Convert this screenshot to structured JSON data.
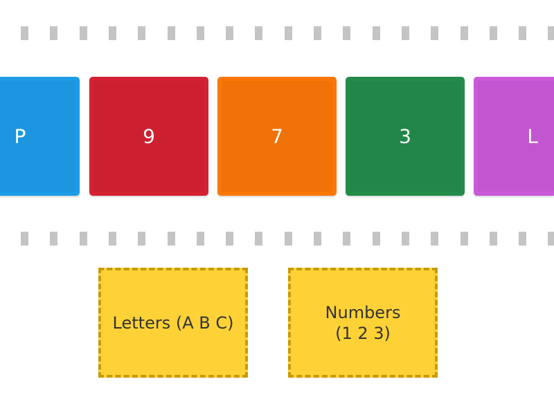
{
  "cards": [
    {
      "label": "P",
      "color": "#1e9ce8"
    },
    {
      "label": "9",
      "color": "#d42133"
    },
    {
      "label": "7",
      "color": "#fb7708"
    },
    {
      "label": "3",
      "color": "#238c4b"
    },
    {
      "label": "L",
      "color": "#cb5ad9"
    }
  ],
  "drop_zones": [
    {
      "label": "Letters (A B C)"
    },
    {
      "label": "Numbers (1 2 3)"
    }
  ],
  "colors": {
    "drop_fill": "#fed236",
    "drop_border": "#c89a08",
    "dash": "#c4c4c4"
  }
}
